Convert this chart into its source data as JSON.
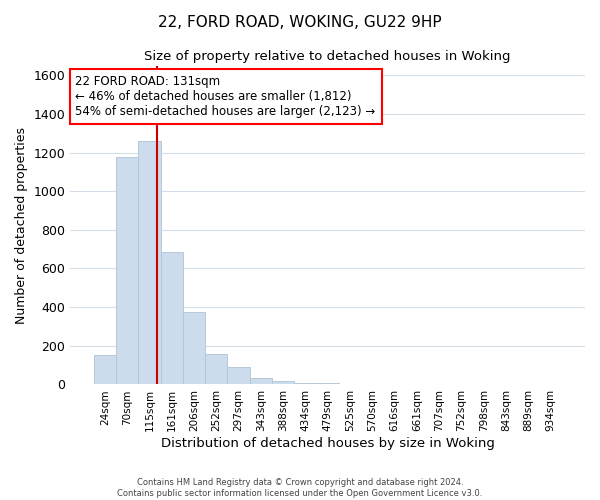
{
  "title1": "22, FORD ROAD, WOKING, GU22 9HP",
  "title2": "Size of property relative to detached houses in Woking",
  "xlabel": "Distribution of detached houses by size in Woking",
  "ylabel": "Number of detached properties",
  "annotation_line1": "22 FORD ROAD: 131sqm",
  "annotation_line2": "← 46% of detached houses are smaller (1,812)",
  "annotation_line3": "54% of semi-detached houses are larger (2,123) →",
  "bin_labels": [
    "24sqm",
    "70sqm",
    "115sqm",
    "161sqm",
    "206sqm",
    "252sqm",
    "297sqm",
    "343sqm",
    "388sqm",
    "434sqm",
    "479sqm",
    "525sqm",
    "570sqm",
    "616sqm",
    "661sqm",
    "707sqm",
    "752sqm",
    "798sqm",
    "843sqm",
    "889sqm",
    "934sqm"
  ],
  "bar_values": [
    150,
    1175,
    1260,
    685,
    375,
    160,
    90,
    35,
    20,
    10,
    10,
    0,
    0,
    0,
    0,
    0,
    0,
    0,
    0,
    0,
    0
  ],
  "bar_color": "#cddcec",
  "bar_edge_color": "#aec4d8",
  "grid_color": "#d5dde8",
  "vline_color": "#cc0000",
  "vline_x": 2.36,
  "ylim": [
    0,
    1650
  ],
  "yticks": [
    0,
    200,
    400,
    600,
    800,
    1000,
    1200,
    1400,
    1600
  ],
  "footer_line1": "Contains HM Land Registry data © Crown copyright and database right 2024.",
  "footer_line2": "Contains public sector information licensed under the Open Government Licence v3.0."
}
